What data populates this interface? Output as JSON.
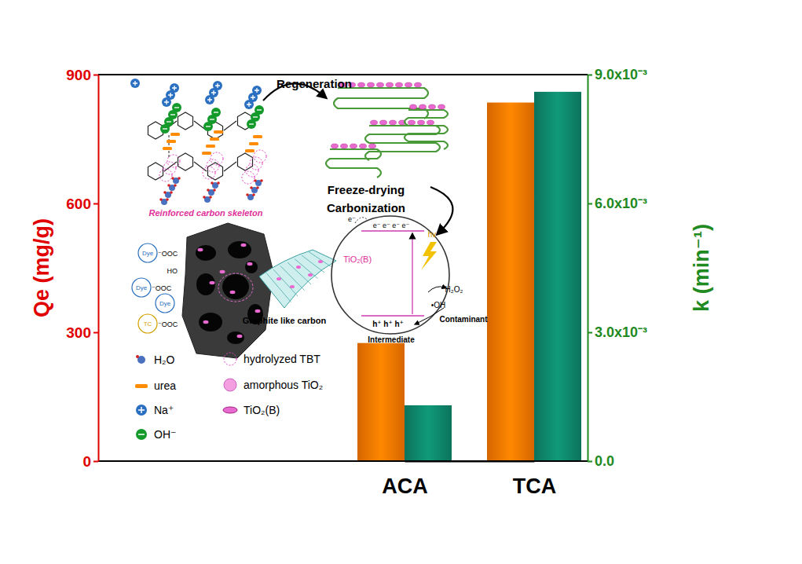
{
  "chart_data": {
    "type": "bar",
    "categories": [
      "ACA",
      "TCA"
    ],
    "series": [
      {
        "name": "Qe (mg/g)",
        "color": "#ff7a00",
        "values": [
          275,
          835
        ]
      },
      {
        "name": "k (min⁻¹)",
        "color": "#0e8a6e",
        "axis": "y2",
        "values": [
          0.0013,
          0.0086
        ]
      }
    ],
    "ylim": [
      0,
      900
    ],
    "yticks": [
      0,
      300,
      600,
      900
    ],
    "y2lim": [
      0,
      0.009
    ],
    "y2ticks": [
      {
        "value": 0,
        "label": "0.0"
      },
      {
        "value": 0.003,
        "label": "3.0x10⁻³"
      },
      {
        "value": 0.006,
        "label": "6.0x10⁻³"
      },
      {
        "value": 0.009,
        "label": "9.0x10⁻³"
      }
    ],
    "grid": false,
    "annotations": [
      "Regeneration",
      "Freeze-drying",
      "Carbonization",
      "Reinforced carbon skeleton",
      "TiO₂(B)",
      "Graphite like carbon",
      "Intermediate",
      "Contaminant",
      "H₂O₂",
      "•OH",
      "hv",
      "e⁻",
      "e⁻ e⁻ e⁻ e⁻",
      "h⁺ h⁺ h⁺",
      "Dye",
      "Dye",
      "Dye",
      "TC",
      "⁻OOC",
      "⁻OOC",
      "⁻OOC",
      "HO",
      "H₂O",
      "urea",
      "Na⁺",
      "OH⁻",
      "hydrolyzed TBT",
      "amorphous TiO₂",
      "TiO₂(B)"
    ]
  }
}
